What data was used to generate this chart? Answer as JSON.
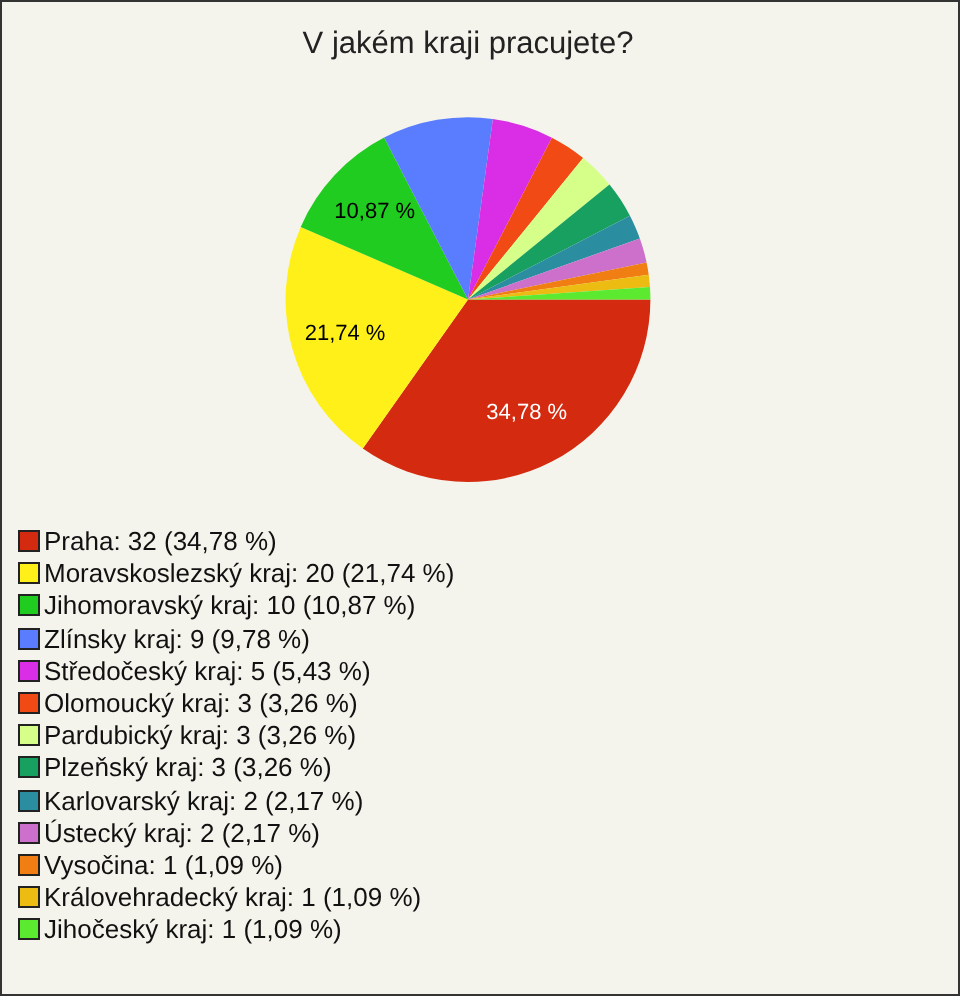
{
  "chart_data": {
    "type": "pie",
    "title": "V jakém kraji pracujete?",
    "categories": [
      "Praha: 32 (34,78 %)",
      "Moravskoslezský kraj: 20 (21,74 %)",
      "Jihomoravský kraj: 10 (10,87 %)",
      "Zlínsky kraj: 9 (9,78 %)",
      "Středočeský kraj: 5 (5,43 %)",
      "Olomoucký kraj: 3 (3,26 %)",
      "Pardubický kraj: 3 (3,26 %)",
      "Plzeňský kraj: 3 (3,26 %)",
      "Karlovarský kraj: 2 (2,17 %)",
      "Ústecký kraj: 2 (2,17 %)",
      "Vysočina: 1 (1,09 %)",
      "Královehradecký kraj: 1 (1,09 %)",
      "Jihočeský kraj: 1 (1,09 %)"
    ],
    "values": [
      34.78,
      21.74,
      10.87,
      9.78,
      5.43,
      3.26,
      3.26,
      3.26,
      2.17,
      2.17,
      1.09,
      1.09,
      1.09
    ],
    "colors": [
      "#d42a10",
      "#fff01a",
      "#1fcc1f",
      "#5a7dff",
      "#d92ee6",
      "#f24a14",
      "#d6ff8a",
      "#18a060",
      "#2a8ea0",
      "#cc70cc",
      "#f07e12",
      "#ecbc12",
      "#5cea30"
    ],
    "value_labels": [
      "34,78 %",
      "21,74 %",
      "10,87 %",
      null,
      null,
      null,
      null,
      null,
      null,
      null,
      null,
      null,
      null
    ],
    "legend": "bottom left"
  }
}
